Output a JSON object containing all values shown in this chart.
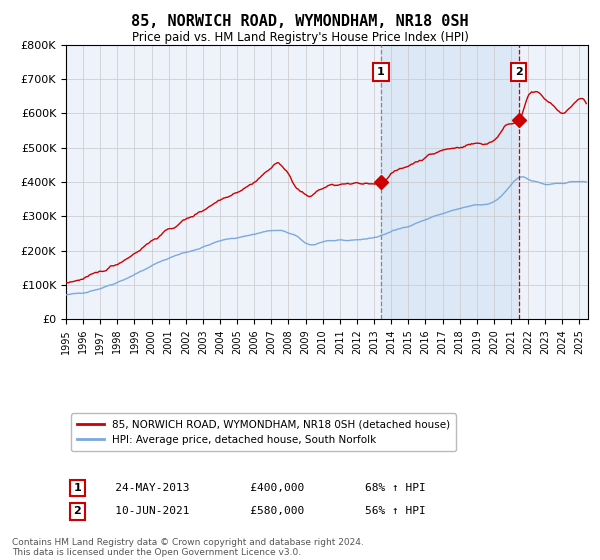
{
  "title": "85, NORWICH ROAD, WYMONDHAM, NR18 0SH",
  "subtitle": "Price paid vs. HM Land Registry's House Price Index (HPI)",
  "ylim": [
    0,
    800000
  ],
  "xlim_start": 1995.0,
  "xlim_end": 2025.5,
  "yticks": [
    0,
    100000,
    200000,
    300000,
    400000,
    500000,
    600000,
    700000,
    800000
  ],
  "ytick_labels": [
    "£0",
    "£100K",
    "£200K",
    "£300K",
    "£400K",
    "£500K",
    "£600K",
    "£700K",
    "£800K"
  ],
  "xticks": [
    1995,
    1996,
    1997,
    1998,
    1999,
    2000,
    2001,
    2002,
    2003,
    2004,
    2005,
    2006,
    2007,
    2008,
    2009,
    2010,
    2011,
    2012,
    2013,
    2014,
    2015,
    2016,
    2017,
    2018,
    2019,
    2020,
    2021,
    2022,
    2023,
    2024,
    2025
  ],
  "background_color": "#ffffff",
  "plot_bg_color": "#eef2fa",
  "grid_color": "#c8c8c8",
  "red_line_color": "#cc0000",
  "blue_line_color": "#7aaadd",
  "sale1_x": 2013.39,
  "sale1_y": 400000,
  "sale1_label": "1",
  "sale1_date": "24-MAY-2013",
  "sale1_price": "£400,000",
  "sale1_hpi": "68% ↑ HPI",
  "sale2_x": 2021.44,
  "sale2_y": 580000,
  "sale2_label": "2",
  "sale2_date": "10-JUN-2021",
  "sale2_price": "£580,000",
  "sale2_hpi": "56% ↑ HPI",
  "legend_line1": "85, NORWICH ROAD, WYMONDHAM, NR18 0SH (detached house)",
  "legend_line2": "HPI: Average price, detached house, South Norfolk",
  "footer": "Contains HM Land Registry data © Crown copyright and database right 2024.\nThis data is licensed under the Open Government Licence v3.0.",
  "shaded_region_start": 2013.39,
  "shaded_region_end": 2021.44,
  "shaded_color": "#dce8f5"
}
